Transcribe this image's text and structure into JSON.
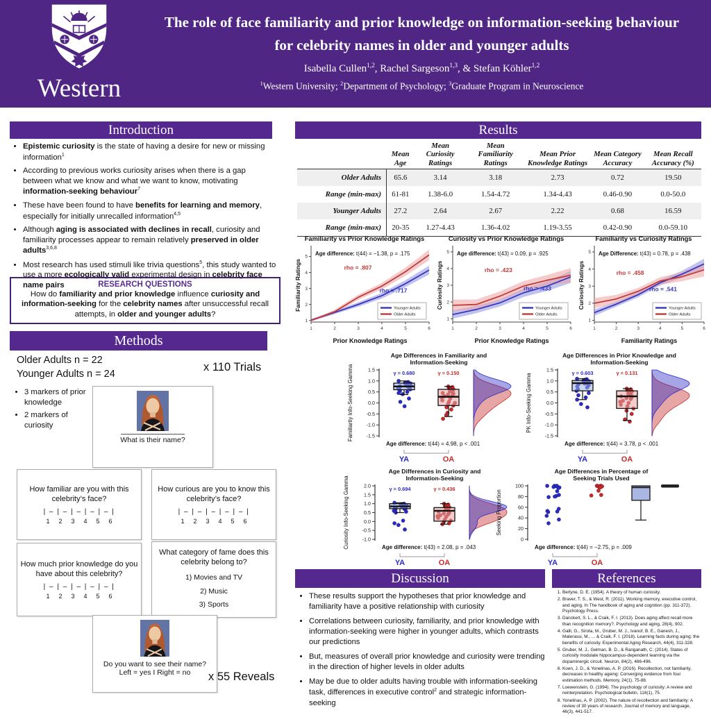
{
  "colors": {
    "poster_purple": "#4F2683",
    "bar_purple": "#54288E",
    "ya_blue": "#2A2AC4",
    "oa_red": "#C42A2A"
  },
  "header": {
    "logo_text": "Western",
    "title_line1": "The role of face familiarity and prior knowledge on information-seeking behaviour",
    "title_line2": "for celebrity names in older and younger adults",
    "authors_parts": [
      {
        "t": "Isabella Cullen"
      },
      {
        "t": "1,2",
        "sup": true
      },
      {
        "t": ",   Rachel Sargeson"
      },
      {
        "t": "1,3",
        "sup": true
      },
      {
        "t": ",   & Stefan Köhler"
      },
      {
        "t": "1,2",
        "sup": true
      }
    ],
    "affils_parts": [
      {
        "t": "1",
        "sup": true
      },
      {
        "t": "Western University;   "
      },
      {
        "t": "2",
        "sup": true
      },
      {
        "t": "Department of Psychology;   "
      },
      {
        "t": "3",
        "sup": true
      },
      {
        "t": "Graduate Program in Neuroscience"
      }
    ]
  },
  "intro": {
    "heading": "Introduction",
    "bullets": [
      [
        {
          "t": "Epistemic curiosity",
          "b": true
        },
        {
          "t": " is the state of having a desire for new or missing information"
        },
        {
          "t": "1",
          "sup": true
        }
      ],
      [
        {
          "t": "According to previous works curiosity arises when there is a gap between what we know and what we want to know, motivating "
        },
        {
          "t": "information-seeking behaviour",
          "b": true
        },
        {
          "t": "7",
          "sup": true
        }
      ],
      [
        {
          "t": "These have been found to have "
        },
        {
          "t": "benefits for learning and memory",
          "b": true
        },
        {
          "t": ", especially for initially unrecalled information"
        },
        {
          "t": "4,5",
          "sup": true
        }
      ],
      [
        {
          "t": "Although "
        },
        {
          "t": "aging is associated with declines in recall",
          "b": true
        },
        {
          "t": ", curiosity and familiarity processes appear to remain relatively "
        },
        {
          "t": "preserved in older adults",
          "b": true
        },
        {
          "t": "3,6,8",
          "sup": true
        }
      ],
      [
        {
          "t": "Most research has used stimuli like trivia questions"
        },
        {
          "t": "5",
          "sup": true
        },
        {
          "t": ", this study wanted to use a more "
        },
        {
          "t": "ecologically valid",
          "b": true
        },
        {
          "t": " experimental design in "
        },
        {
          "t": "celebrity face name pairs",
          "b": true
        }
      ]
    ],
    "rq_title": "RESEARCH QUESTIONS",
    "rq_parts": [
      {
        "t": "How do "
      },
      {
        "t": "familiarity and prior knowledge",
        "b": true
      },
      {
        "t": " influence "
      },
      {
        "t": "curiosity and information-seeking",
        "b": true
      },
      {
        "t": " for the "
      },
      {
        "t": "celebrity names",
        "b": true
      },
      {
        "t": " after unsuccessful recall attempts, in "
      },
      {
        "t": "older and younger adults",
        "b": true
      },
      {
        "t": "?"
      }
    ]
  },
  "methods": {
    "heading": "Methods",
    "sample_line1": "Older Adults n = 22",
    "sample_line2": "Younger Adults n = 24",
    "trials": "x 110 Trials",
    "marker_bullets": [
      "3 markers of prior knowledge",
      "2 markers of curiosity"
    ],
    "whatname_caption": "What is their name?",
    "scale": "| – | – | – | – | – |",
    "scale_numbers": [
      "1",
      "2",
      "3",
      "4",
      "5",
      "6"
    ],
    "q_familiar": "How familiar are you with this celebrity’s face?",
    "q_curious": "How curious are you to know this celebrity’s face?",
    "q_prior": "How much prior knowledge do you have about this celebrity?",
    "q_category": "What category of fame does this celebrity belong to?",
    "category_options": [
      "1)  Movies and TV",
      "2)  Music",
      "3)  Sports"
    ],
    "reveal_line1": "Do you want to see their name?",
    "reveal_line2": "Left = yes I Right = no",
    "reveals": "x 55 Reveals"
  },
  "results": {
    "heading": "Results",
    "table": {
      "columns": [
        "Mean Age",
        "Mean Curiosity Ratings",
        "Mean Familiarity Ratings",
        "Mean Prior Knowledge Ratings",
        "Mean Category Accuracy",
        "Mean Recall Accuracy (%)"
      ],
      "rows": [
        {
          "label": "Older Adults",
          "values": [
            "65.6",
            "3.14",
            "3.18",
            "2.73",
            "0.72",
            "19.50"
          ]
        },
        {
          "label": "Range (min-max)",
          "values": [
            "61-81",
            "1.38-6.0",
            "1.54-4.72",
            "1.34-4.43",
            "0.46-0.90",
            "0.0-50.0"
          ]
        },
        {
          "label": "Younger Adults",
          "values": [
            "27.2",
            "2.64",
            "2.67",
            "2.22",
            "0.68",
            "16.59"
          ]
        },
        {
          "label": "Range (min-max)",
          "values": [
            "20-35",
            "1.27-4.43",
            "1.36-4.02",
            "1.19-3.55",
            "0.42-0.90",
            "0.0-59.10"
          ]
        }
      ]
    }
  },
  "chart_data": [
    {
      "type": "line",
      "title": "Familiarity vs Prior Knowledge Ratings",
      "xlabel": "Prior Knowledge Ratings",
      "ylabel": "Familiarity Ratings",
      "x": [
        1,
        2,
        3,
        4,
        5,
        6
      ],
      "xlim": [
        1,
        6
      ],
      "ylim": [
        0.9,
        5.5
      ],
      "xticks": [
        1,
        2,
        3,
        4,
        5,
        6
      ],
      "yticks": [
        1,
        2,
        3,
        4,
        5
      ],
      "annotation": {
        "bold": "Age difference:",
        "rest": " t(44) = −1.38, p = .175"
      },
      "series": [
        {
          "name": "Younger Adults",
          "color": "#3535C0",
          "band": "#9090E0",
          "values": [
            1.02,
            1.5,
            2.0,
            2.55,
            3.3,
            4.15
          ],
          "bandw": [
            0.07,
            0.1,
            0.14,
            0.18,
            0.22,
            0.28
          ],
          "rho": "rho = .717",
          "rho_x": 0.58,
          "rho_y": 0.6
        },
        {
          "name": "Older Adults",
          "color": "#C03A3A",
          "band": "#EDA2A2",
          "values": [
            1.0,
            1.55,
            2.45,
            3.15,
            4.05,
            5.1
          ],
          "bandw": [
            0.05,
            0.12,
            0.16,
            0.2,
            0.26,
            0.33
          ],
          "rho": "rho = .807",
          "rho_x": 0.28,
          "rho_y": 0.29
        }
      ]
    },
    {
      "type": "line",
      "title": "Curiosity vs Prior Knowledge Ratings",
      "xlabel": "Prior Knowledge Ratings",
      "ylabel": "Curiosity Ratings",
      "x": [
        1,
        2,
        3,
        4,
        5,
        6
      ],
      "xlim": [
        1,
        6
      ],
      "ylim": [
        0.8,
        5.2
      ],
      "xticks": [
        1,
        2,
        3,
        4,
        5,
        6
      ],
      "yticks": [
        1,
        2,
        3,
        4,
        5
      ],
      "annotation": {
        "bold": "Age difference:",
        "rest": " t(43) = 0.09, p = .925"
      },
      "series": [
        {
          "name": "Younger Adults",
          "color": "#3535C0",
          "band": "#9090E0",
          "values": [
            1.25,
            1.55,
            1.95,
            2.55,
            2.95,
            3.5
          ],
          "bandw": [
            0.25,
            0.22,
            0.22,
            0.25,
            0.28,
            0.36
          ],
          "rho": "rho = .433",
          "rho_x": 0.6,
          "rho_y": 0.57
        },
        {
          "name": "Older Adults",
          "color": "#C03A3A",
          "band": "#EDA2A2",
          "values": [
            1.8,
            1.85,
            2.35,
            2.95,
            3.3,
            3.6
          ],
          "bandw": [
            0.35,
            0.3,
            0.28,
            0.3,
            0.32,
            0.42
          ],
          "rho": "rho = .423",
          "rho_x": 0.27,
          "rho_y": 0.32
        }
      ]
    },
    {
      "type": "line",
      "title": "Familiarity vs Curiosity Ratings",
      "xlabel": "Familiarity Ratings",
      "ylabel": "Curiosity Ratings",
      "x": [
        1,
        2,
        3,
        4,
        5,
        6
      ],
      "xlim": [
        1,
        6
      ],
      "ylim": [
        0.9,
        5.2
      ],
      "xticks": [
        1,
        2,
        3,
        4,
        5,
        6
      ],
      "yticks": [
        1,
        2,
        3,
        4,
        5
      ],
      "annotation": {
        "bold": "Age Difference:",
        "rest": " t(43) = 0.78, p = .438"
      },
      "series": [
        {
          "name": "Younger Adults",
          "color": "#3535C0",
          "band": "#9090E0",
          "values": [
            1.45,
            1.95,
            2.5,
            3.2,
            3.7,
            4.3
          ],
          "bandw": [
            0.18,
            0.15,
            0.15,
            0.16,
            0.2,
            0.3
          ],
          "rho": "rho = .541",
          "rho_x": 0.5,
          "rho_y": 0.58
        },
        {
          "name": "Older Adults",
          "color": "#C03A3A",
          "band": "#EDA2A2",
          "values": [
            2.0,
            2.25,
            2.7,
            3.3,
            3.55,
            3.95
          ],
          "bandw": [
            0.3,
            0.24,
            0.2,
            0.22,
            0.26,
            0.38
          ],
          "rho": "rho = .458",
          "rho_x": 0.2,
          "rho_y": 0.36
        }
      ]
    },
    {
      "type": "raincloud",
      "title_lines": [
        "Age Differences in Familiarity and",
        "Information-Seeking"
      ],
      "ylabel": "Familiarity Info-Seeking Gamma",
      "ylim": [
        -1.5,
        1.5
      ],
      "tick_step": 0.5,
      "decimals": 1,
      "density": true,
      "note": {
        "bold": "Age difference:",
        "rest": " t(44) = 4.98, p < .001"
      },
      "groups": [
        {
          "label": "YA",
          "color": "#2A2AC4",
          "fill": "#9DB1E8",
          "gamma": "γ = 0.680",
          "points": [
            1.0,
            0.95,
            0.93,
            0.9,
            0.9,
            0.88,
            0.85,
            0.85,
            0.82,
            0.8,
            0.78,
            0.76,
            0.75,
            0.72,
            0.7,
            0.68,
            0.65,
            0.62,
            0.55,
            0.5,
            0.45,
            0.4,
            0.2,
            0.05,
            -0.15
          ],
          "box": {
            "q1": 0.6,
            "med": 0.75,
            "q3": 0.9,
            "lo": 0.38,
            "hi": 1.0
          }
        },
        {
          "label": "OA",
          "color": "#C42A2A",
          "fill": "#EAA3A3",
          "gamma": "γ = 0.150",
          "points": [
            0.75,
            0.72,
            0.68,
            0.65,
            0.62,
            0.6,
            0.55,
            0.52,
            0.5,
            0.45,
            0.42,
            0.38,
            0.33,
            0.3,
            0.25,
            0.2,
            0.12,
            0.05,
            0.0,
            -0.05,
            -0.12,
            -0.2,
            -0.3,
            -0.45,
            -0.55,
            -0.72
          ],
          "box": {
            "q1": -0.12,
            "med": 0.28,
            "q3": 0.62,
            "lo": -0.62,
            "hi": 0.75
          }
        }
      ]
    },
    {
      "type": "raincloud",
      "title_lines": [
        "Age Differences in Prior Knowledge and",
        "Information-Seeking"
      ],
      "ylabel": "PK Info-Seeking Gamma",
      "ylim": [
        -1.5,
        1.5
      ],
      "tick_step": 0.5,
      "decimals": 1,
      "density": true,
      "note": {
        "bold": "Age difference:",
        "rest": " t(44) = 3.78, p < .001"
      },
      "groups": [
        {
          "label": "YA",
          "color": "#2A2AC4",
          "fill": "#9DB1E8",
          "gamma": "γ = 0.603",
          "points": [
            1.1,
            1.08,
            1.05,
            1.02,
            1.0,
            0.98,
            0.96,
            0.94,
            0.92,
            0.9,
            0.88,
            0.85,
            0.8,
            0.75,
            0.7,
            0.62,
            0.55,
            0.45,
            0.35,
            0.25,
            0.15,
            -0.05,
            -0.2
          ],
          "box": {
            "q1": 0.55,
            "med": 0.9,
            "q3": 1.02,
            "lo": 0.15,
            "hi": 1.1
          }
        },
        {
          "label": "OA",
          "color": "#C42A2A",
          "fill": "#EAA3A3",
          "gamma": "γ = 0.131",
          "points": [
            0.65,
            0.62,
            0.6,
            0.55,
            0.52,
            0.5,
            0.45,
            0.4,
            0.35,
            0.3,
            0.28,
            0.22,
            0.18,
            0.1,
            0.05,
            0.0,
            -0.08,
            -0.15,
            -0.25,
            -0.35,
            -0.5,
            -0.75,
            -0.85
          ],
          "box": {
            "q1": -0.25,
            "med": 0.3,
            "q3": 0.55,
            "lo": -0.8,
            "hi": 0.65
          }
        }
      ]
    },
    {
      "type": "raincloud",
      "title_lines": [
        "Age Differences in Curiosity and",
        "Information-Seeking"
      ],
      "ylabel": "Curiosity Info-Seeking Gamma",
      "ylim": [
        -1.0,
        2.0
      ],
      "tick_step": 0.5,
      "decimals": 1,
      "density": true,
      "note": {
        "bold": "Age difference:",
        "rest": " t(43) = 2.08, p = .043"
      },
      "groups": [
        {
          "label": "YA",
          "color": "#2A2AC4",
          "fill": "#9DB1E8",
          "gamma": "γ = 0.694",
          "points": [
            1.05,
            1.0,
            0.98,
            0.95,
            0.92,
            0.9,
            0.88,
            0.85,
            0.85,
            0.82,
            0.8,
            0.78,
            0.75,
            0.72,
            0.7,
            0.65,
            0.6,
            0.55,
            0.5,
            0.05,
            -0.1,
            -0.2,
            -0.45
          ],
          "box": {
            "q1": 0.72,
            "med": 0.85,
            "q3": 1.0,
            "lo": 0.5,
            "hi": 1.05
          }
        },
        {
          "label": "OA",
          "color": "#C42A2A",
          "fill": "#EAA3A3",
          "gamma": "γ = 0.436",
          "points": [
            1.0,
            0.95,
            0.9,
            0.85,
            0.8,
            0.75,
            0.7,
            0.65,
            0.6,
            0.55,
            0.5,
            0.45,
            0.4,
            0.35,
            0.3,
            0.25,
            0.2,
            0.1,
            0.05,
            0.0,
            -0.1,
            -0.15
          ],
          "box": {
            "q1": 0.02,
            "med": 0.6,
            "q3": 0.78,
            "lo": -0.15,
            "hi": 1.0
          }
        }
      ]
    },
    {
      "type": "raincloud",
      "title_lines": [
        "Age Differences in Percentage of",
        "Seeking Trials Used"
      ],
      "ylabel": "Seeking Proportion",
      "ylim": [
        0,
        100
      ],
      "tick_step": 20,
      "decimals": 0,
      "density": false,
      "note": {
        "bold": "Age difference:",
        "rest": " t(44) = −2.75, p = .009"
      },
      "groups": [
        {
          "label": "YA",
          "color": "#2A2AC4",
          "fill": "#9DB1E8",
          "points": [
            100,
            100,
            100,
            99,
            98,
            97,
            96,
            90,
            83,
            81,
            80,
            79,
            57,
            53,
            52,
            51,
            44,
            37,
            30
          ]
        },
        {
          "label": "OA",
          "color": "#C42A2A",
          "fill": "#EAA3A3",
          "points": [
            100,
            100,
            100,
            100,
            99,
            98,
            97,
            91,
            83,
            82
          ]
        }
      ],
      "right_summary": {
        "box": {
          "q1": 73,
          "med": 97,
          "q3": 100,
          "lo": 36,
          "hi": 100
        },
        "bar": 100
      }
    }
  ],
  "discussion": {
    "heading": "Discussion",
    "bullets": [
      [
        {
          "t": "These results support the hypotheses that prior knowledge and familiarity have a positive relationship with curiosity"
        }
      ],
      [
        {
          "t": "Correlations between curiosity, familiarity, and prior knowledge with information-seeking were higher in younger adults, which contrasts our predictions"
        }
      ],
      [
        {
          "t": "But, measures of overall prior knowledge and curiosity were trending in the direction of higher levels in older adults"
        }
      ],
      [
        {
          "t": "May be due to older adults having trouble with information-seeking task, differences in executive control"
        },
        {
          "t": "2",
          "sup": true
        },
        {
          "t": " and strategic information-seeking"
        }
      ]
    ]
  },
  "references": {
    "heading": "References",
    "items": [
      "Berlyne, D. E. (1954). A theory of human curiosity.",
      "Braver, T. S., & West, R. (2011). Working memory, executive control, and aging. In The handbook of aging and cognition (pp. 311-372). Psychology Press.",
      "Danckert, S. L., & Craik, F. I. (2013). Does aging affect recall more than recognition memory?. Psychology and aging, 28(4), 902.",
      "Galli, G., Sirota, M., Gruber, M. J., Ivanof, B. E., Ganesh, J., Materassi, M., ... & Craik, F. I. (2018). Learning facts during aging: the benefits of curiosity. Experimental Aging Research, 44(4), 311-328.",
      "Gruber, M. J., Gelman, B. D., & Ranganath, C. (2014). States of curiosity modulate hippocampus-dependent learning via the dopaminergic circuit. Neuron, 84(2), 486-496.",
      "Koen, J. D., & Yonelinas, A. P. (2016). Recollection, not familiarity, decreases in healthy ageing: Converging evidence from four estimation methods. Memory, 24(1), 75-88.",
      "Loewenstein, G. (1994). The psychology of curiosity: A review and reinterpretation. Psychological bulletin, 116(1), 75.",
      "Yonelinas, A. P. (2002). The nature of recollection and familiarity: A review of 30 years of research. Journal of memory and language, 46(3), 441-517."
    ]
  }
}
